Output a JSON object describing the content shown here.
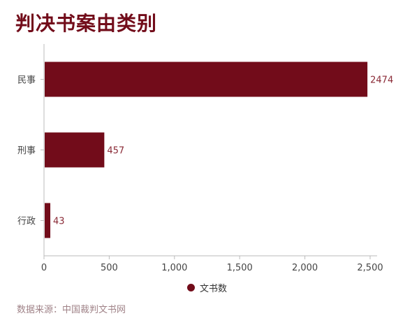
{
  "title": "判决书案由类别",
  "source": "数据来源：中国裁判文书网",
  "colors": {
    "bar": "#720c1a",
    "label": "#8a2a36",
    "axis": "#bbbbbb",
    "text": "#444444"
  },
  "chart_data": {
    "type": "bar",
    "orientation": "horizontal",
    "categories": [
      "民事",
      "刑事",
      "行政"
    ],
    "series": [
      {
        "name": "文书数",
        "values": [
          2474,
          457,
          43
        ]
      }
    ],
    "xlim": [
      0,
      2500
    ],
    "xticks": [
      0,
      500,
      1000,
      1500,
      2000,
      2500
    ],
    "xtick_labels": [
      "0",
      "500",
      "1,000",
      "1,500",
      "2,000",
      "2,500"
    ],
    "grid": false,
    "legend": "bottom"
  }
}
